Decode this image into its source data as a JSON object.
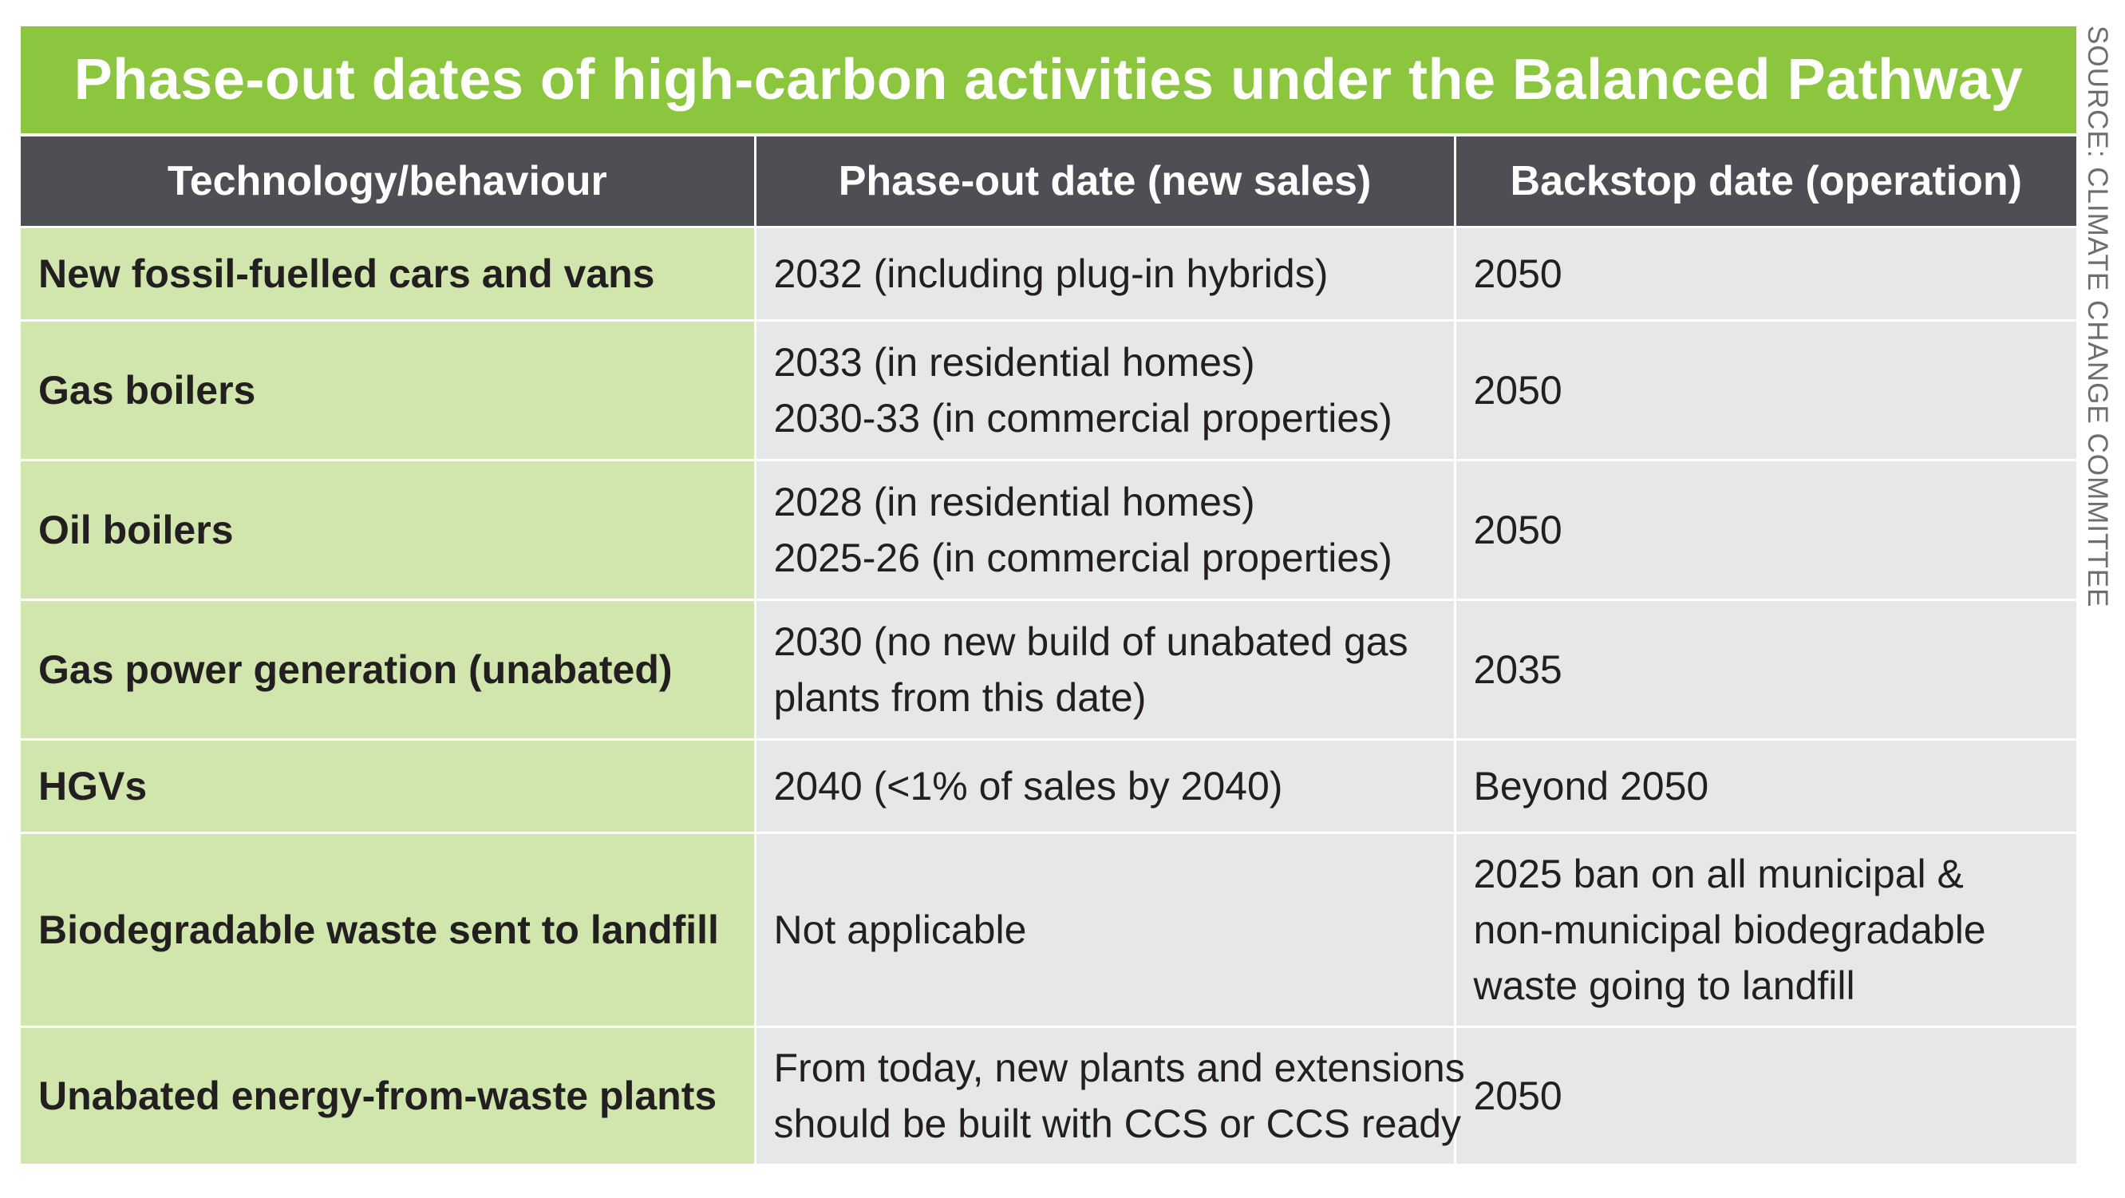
{
  "title": "Phase-out dates of high-carbon activities under the Balanced Pathway",
  "source": "SOURCE: CLIMATE CHANGE COMMITTEE",
  "colors": {
    "title_bg": "#8cc63f",
    "header_bg": "#4d4f54",
    "tech_col_bg": "#d1e6ac",
    "value_col_bg": "#e6e7e8"
  },
  "table": {
    "headers": [
      "Technology/behaviour",
      "Phase-out date (new sales)",
      "Backstop date (operation)"
    ],
    "rows": [
      {
        "tech": "New fossil-fuelled cars and vans",
        "phase_out": [
          "2032 (including plug-in hybrids)"
        ],
        "backstop": [
          "2050"
        ]
      },
      {
        "tech": "Gas boilers",
        "phase_out": [
          "2033 (in residential homes)",
          "2030-33 (in commercial properties)"
        ],
        "backstop": [
          "2050"
        ]
      },
      {
        "tech": "Oil boilers",
        "phase_out": [
          "2028 (in residential homes)",
          "2025-26 (in commercial properties)"
        ],
        "backstop": [
          "2050"
        ]
      },
      {
        "tech": "Gas power generation (unabated)",
        "phase_out": [
          "2030 (no new build of unabated gas",
          "plants from this date)"
        ],
        "backstop": [
          "2035"
        ]
      },
      {
        "tech": "HGVs",
        "phase_out": [
          "2040 (<1% of sales by 2040)"
        ],
        "backstop": [
          "Beyond 2050"
        ]
      },
      {
        "tech": "Biodegradable waste sent to landfill",
        "phase_out": [
          "Not applicable"
        ],
        "backstop": [
          "2025 ban on all municipal &",
          "non-municipal biodegradable",
          "waste going to landfill"
        ]
      },
      {
        "tech": "Unabated energy-from-waste plants",
        "phase_out": [
          "From today, new plants and extensions",
          "should be built with CCS or CCS ready"
        ],
        "backstop": [
          "2050"
        ]
      }
    ]
  }
}
